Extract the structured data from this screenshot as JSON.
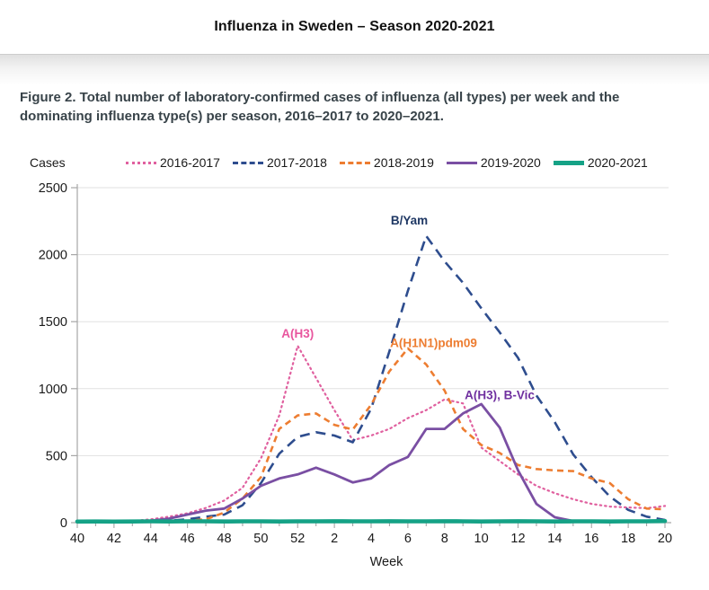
{
  "header": {
    "title": "Influenza in Sweden – Season 2020-2021"
  },
  "caption": "Figure 2. Total number of laboratory-confirmed cases of influenza (all types) per week and the dominating influenza type(s) per season, 2016–2017 to 2020–2021.",
  "chart_data": {
    "type": "line",
    "title": "",
    "ylabel": "Cases",
    "xlabel": "Week",
    "ylim": [
      0,
      2500
    ],
    "yticks": [
      0,
      500,
      1000,
      1500,
      2000,
      2500
    ],
    "grid": "horizontal",
    "legend_position": "top",
    "x_categories": [
      "40",
      "41",
      "42",
      "43",
      "44",
      "45",
      "46",
      "47",
      "48",
      "49",
      "50",
      "51",
      "52",
      "1",
      "2",
      "3",
      "4",
      "5",
      "6",
      "7",
      "8",
      "9",
      "10",
      "11",
      "12",
      "13",
      "14",
      "15",
      "16",
      "17",
      "18",
      "19",
      "20"
    ],
    "x_major_labels": [
      "40",
      "42",
      "44",
      "46",
      "48",
      "50",
      "52",
      "2",
      "4",
      "6",
      "8",
      "10",
      "12",
      "14",
      "16",
      "18",
      "20"
    ],
    "series": [
      {
        "name": "2016-2017",
        "style": "dotted",
        "color": "#e0609f",
        "values": [
          5,
          6,
          8,
          12,
          25,
          45,
          70,
          110,
          165,
          260,
          480,
          800,
          1320,
          1080,
          840,
          615,
          650,
          700,
          780,
          840,
          920,
          890,
          560,
          460,
          360,
          275,
          220,
          175,
          140,
          120,
          113,
          108,
          125
        ]
      },
      {
        "name": "2017-2018",
        "style": "dashed",
        "color": "#2e4d8e",
        "values": [
          2,
          3,
          4,
          6,
          10,
          15,
          25,
          45,
          60,
          130,
          295,
          515,
          640,
          675,
          650,
          600,
          850,
          1280,
          1730,
          2140,
          1950,
          1790,
          1600,
          1420,
          1230,
          950,
          750,
          510,
          340,
          195,
          95,
          45,
          20
        ]
      },
      {
        "name": "2018-2019",
        "style": "dashed-short",
        "color": "#ed7d31",
        "values": [
          2,
          2,
          3,
          4,
          6,
          10,
          15,
          25,
          75,
          180,
          340,
          700,
          800,
          815,
          730,
          695,
          880,
          1130,
          1300,
          1180,
          985,
          700,
          580,
          520,
          430,
          400,
          390,
          385,
          330,
          295,
          175,
          105,
          100
        ]
      },
      {
        "name": "2019-2020",
        "style": "solid",
        "color": "#7a4fa3",
        "values": [
          3,
          4,
          5,
          8,
          15,
          30,
          60,
          90,
          105,
          180,
          275,
          330,
          360,
          410,
          360,
          300,
          330,
          430,
          490,
          700,
          700,
          815,
          885,
          710,
          390,
          140,
          40,
          12,
          8,
          8,
          8,
          8,
          8
        ]
      },
      {
        "name": "2020-2021",
        "style": "solid-thick",
        "color": "#15a286",
        "values": [
          8,
          9,
          8,
          9,
          10,
          9,
          10,
          10,
          9,
          10,
          10,
          9,
          10,
          10,
          11,
          10,
          10,
          11,
          10,
          10,
          11,
          10,
          9,
          10,
          11,
          10,
          9,
          10,
          10,
          9,
          10,
          10,
          12
        ]
      }
    ],
    "annotations": [
      {
        "text": "A(H3)",
        "color": "#e8569e",
        "week_index": 12.0,
        "value": 1380
      },
      {
        "text": "B/Yam",
        "color": "#1f3864",
        "week_index": 18.08,
        "value": 2225
      },
      {
        "text": "A(H1N1)pdm09",
        "color": "#ed7d31",
        "week_index": 19.4,
        "value": 1310
      },
      {
        "text": "A(H3), B-Vic",
        "color": "#7030a0",
        "week_index": 23.0,
        "value": 920
      }
    ]
  }
}
